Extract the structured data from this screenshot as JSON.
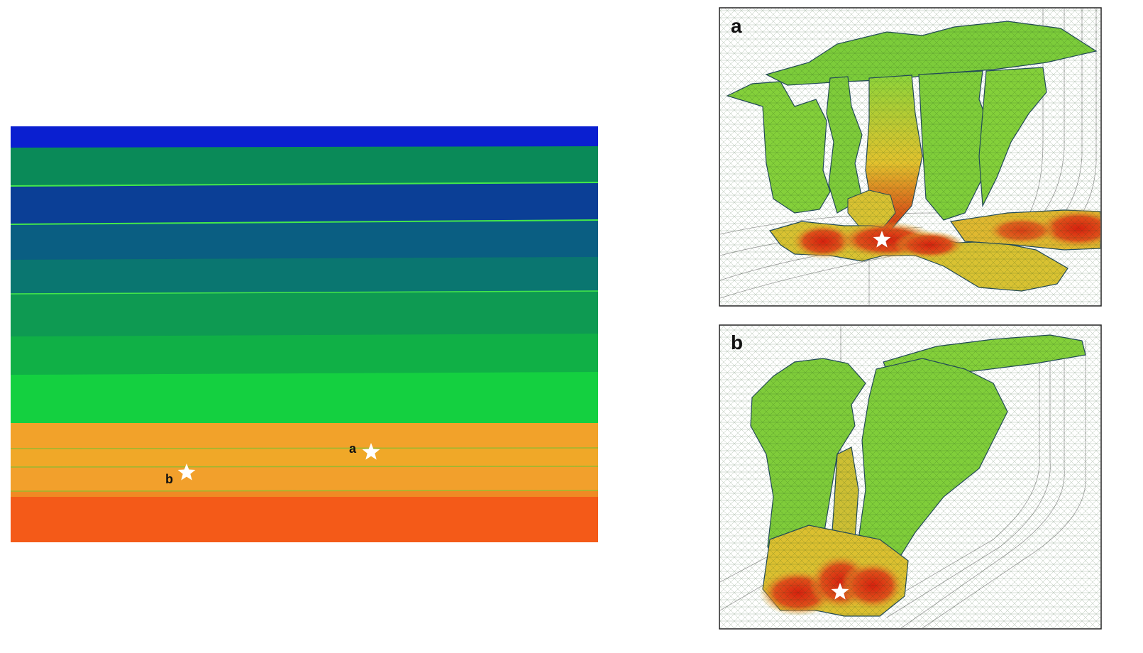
{
  "section": {
    "markers": [
      {
        "label": "a",
        "name": "marker-a"
      },
      {
        "label": "b",
        "name": "marker-b"
      }
    ]
  },
  "panels": [
    {
      "label": "a",
      "name": "panel-a"
    },
    {
      "label": "b",
      "name": "panel-b"
    }
  ],
  "colors": {
    "blue": "#0a1fd0",
    "teal": "#0a6a78",
    "green": "#11c23a",
    "bright_green": "#3ee63a",
    "orange": "#f2a02a",
    "deep_orange": "#f45a18",
    "red": "#d8200e",
    "mesh_green": "#7ad23a",
    "mesh_yellow": "#e0c030"
  }
}
